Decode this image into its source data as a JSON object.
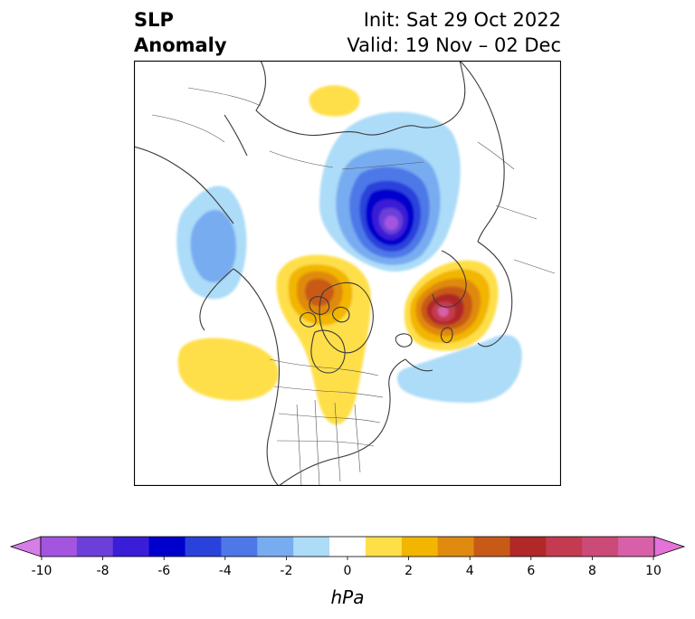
{
  "title": {
    "left_line1": "SLP",
    "left_line2": "Anomaly",
    "init": "Init: Sat 29 Oct 2022",
    "valid": "Valid: 19 Nov – 02 Dec"
  },
  "map": {
    "projection": "polar stereographic (North America / Arctic)",
    "features": [
      "coastlines",
      "country borders",
      "US state borders"
    ]
  },
  "anomaly_centers": [
    {
      "sign": "negative",
      "region": "Arctic / north of Siberia",
      "peak_hPa": -10
    },
    {
      "sign": "negative",
      "region": "Gulf of Alaska / NE Pacific",
      "peak_hPa": -3
    },
    {
      "sign": "negative",
      "region": "North Atlantic",
      "peak_hPa": -2
    },
    {
      "sign": "positive",
      "region": "Scandinavia / Barents",
      "peak_hPa": 8
    },
    {
      "sign": "positive",
      "region": "Northwest Canada",
      "peak_hPa": 6
    },
    {
      "sign": "positive",
      "region": "Central Pacific",
      "peak_hPa": 2
    },
    {
      "sign": "positive",
      "region": "Ural / W Siberia",
      "peak_hPa": 2
    }
  ],
  "colorbar": {
    "unit": "hPa",
    "ticks": [
      "-10",
      "-8",
      "-6",
      "-4",
      "-2",
      "0",
      "2",
      "4",
      "6",
      "8",
      "10"
    ],
    "colors": [
      "#d67de8",
      "#a355e0",
      "#6b3fd8",
      "#3a1dd6",
      "#0000cc",
      "#2a42dc",
      "#4e78e8",
      "#78acf0",
      "#acdcf8",
      "#ffffff",
      "#ffdf48",
      "#f2b600",
      "#e08a10",
      "#c85a18",
      "#b02828",
      "#c43a50",
      "#cc4a78",
      "#d860a8",
      "#e472d8"
    ]
  }
}
